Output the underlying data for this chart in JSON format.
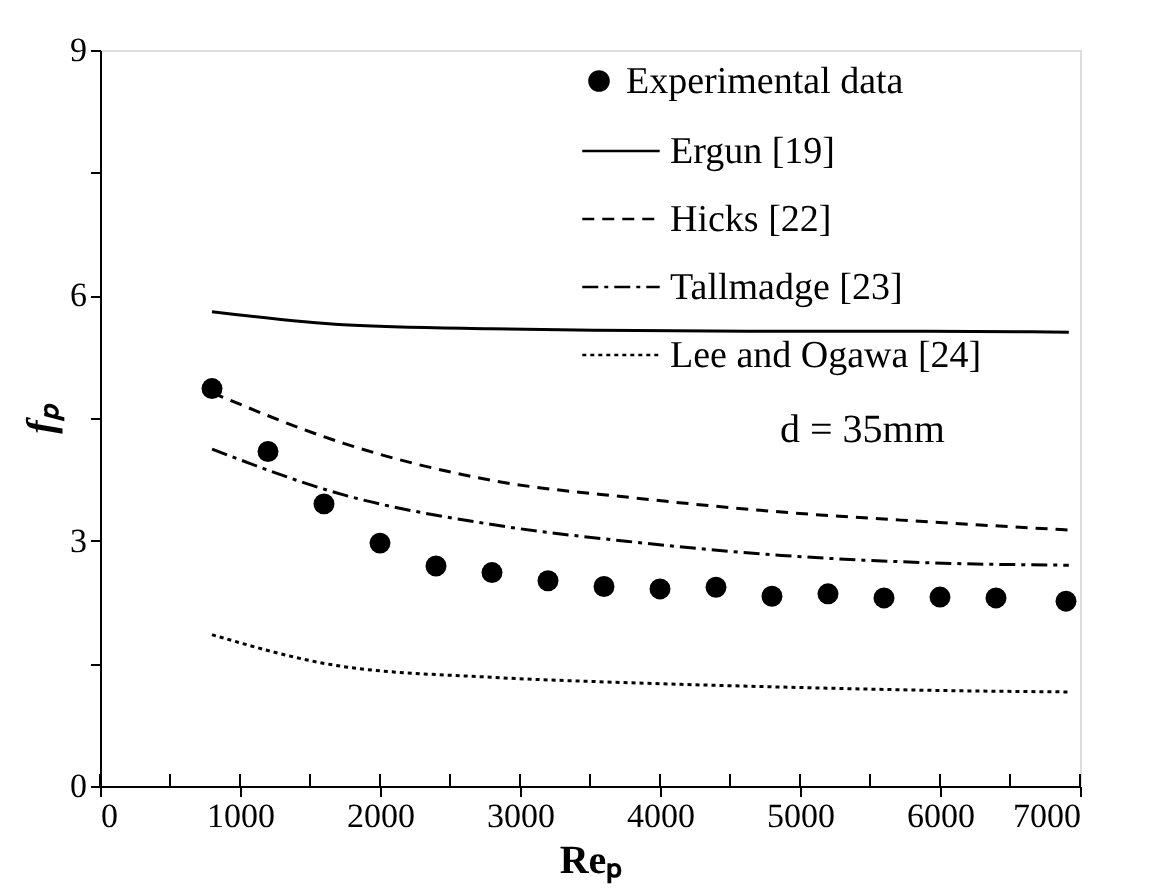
{
  "chart_data": {
    "type": "line",
    "xlabel": "Reₚ",
    "ylabel": "fₚ",
    "xlim": [
      0,
      7000
    ],
    "ylim": [
      0,
      9
    ],
    "xticks": [
      0,
      {
        "value": 500,
        "label": null
      },
      1000,
      {
        "value": 1500,
        "label": null
      },
      2000,
      {
        "value": 2500,
        "label": null
      },
      3000,
      {
        "value": 3500,
        "label": null
      },
      4000,
      {
        "value": 4500,
        "label": null
      },
      5000,
      {
        "value": 5500,
        "label": null
      },
      6000,
      {
        "value": 6500,
        "label": null
      },
      7000
    ],
    "yticks": [
      0,
      {
        "value": 1.5,
        "label": null
      },
      3,
      {
        "value": 4.5,
        "label": null
      },
      6,
      {
        "value": 7.5,
        "label": null
      },
      9
    ],
    "grid": false,
    "legend": "top right",
    "annotations": [
      "d = 35mm"
    ],
    "series": [
      {
        "name": "Experimental data",
        "type": "scatter",
        "marker": "circle",
        "color": "#000000",
        "x": [
          800,
          1200,
          1600,
          2000,
          2400,
          2800,
          3200,
          3600,
          4000,
          4400,
          4800,
          5200,
          5600,
          6000,
          6400,
          6900
        ],
        "values": [
          4.86,
          4.09,
          3.45,
          2.97,
          2.69,
          2.61,
          2.51,
          2.44,
          2.41,
          2.43,
          2.32,
          2.35,
          2.3,
          2.31,
          2.3,
          2.26
        ]
      },
      {
        "name": "Ergun [19]",
        "type": "line",
        "line_style": "solid",
        "color": "#000000",
        "x": [
          800,
          1740,
          2790,
          3830,
          4870,
          5920,
          6920
        ],
        "values": [
          5.8,
          5.64,
          5.59,
          5.57,
          5.56,
          5.56,
          5.55
        ]
      },
      {
        "name": "Hicks [22]",
        "type": "line",
        "line_style": "dashed",
        "color": "#000000",
        "x": [
          800,
          1740,
          2790,
          3830,
          4870,
          5920,
          6920
        ],
        "values": [
          4.81,
          4.19,
          3.74,
          3.52,
          3.35,
          3.23,
          3.13
        ]
      },
      {
        "name": "Tallmadge [23]",
        "type": "line",
        "line_style": "dashdot",
        "color": "#000000",
        "x": [
          800,
          1740,
          2790,
          3830,
          4870,
          5920,
          6920
        ],
        "values": [
          4.12,
          3.56,
          3.2,
          2.98,
          2.82,
          2.73,
          2.7
        ]
      },
      {
        "name": "Lee and Ogawa [24]",
        "type": "line",
        "line_style": "dotted",
        "color": "#000000",
        "x": [
          800,
          1740,
          2790,
          3830,
          4870,
          5920,
          6920
        ],
        "values": [
          1.85,
          1.46,
          1.33,
          1.26,
          1.21,
          1.17,
          1.15
        ]
      }
    ]
  }
}
